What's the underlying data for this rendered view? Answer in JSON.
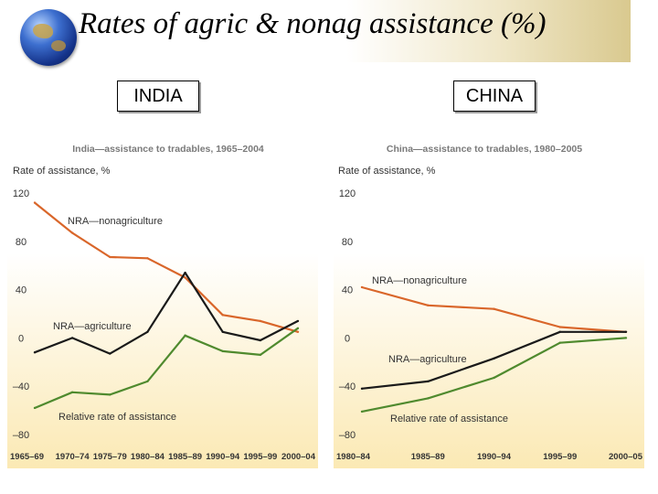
{
  "header": {
    "title": "Rates of agric & nonag assistance (%)",
    "india_label": "INDIA",
    "china_label": "CHINA"
  },
  "colors": {
    "nonag": "#d9662a",
    "agric": "#1a1a1a",
    "relative": "#4f8a2e",
    "panel_bg_top": "#ffffff",
    "panel_bg_bottom": "#fbe9b4",
    "title_text": "#7a7a7a"
  },
  "chart_data": [
    {
      "type": "line",
      "title": "India—assistance to tradables, 1965–2004",
      "ylabel": "Rate of assistance, %",
      "xlabel": "",
      "categories": [
        "1965–69",
        "1970–74",
        "1975–79",
        "1980–84",
        "1985–89",
        "1990–94",
        "1995–99",
        "2000–04"
      ],
      "ylim": [
        -80,
        120
      ],
      "yticks": [
        120,
        80,
        40,
        0,
        -40,
        -80
      ],
      "ytick_labels": [
        "120",
        "80",
        "40",
        "0",
        "–40",
        "–80"
      ],
      "grid": false,
      "series": [
        {
          "name": "NRA—nonagriculture",
          "key": "nonag",
          "values": [
            112,
            87,
            67,
            66,
            50,
            19,
            14,
            5
          ]
        },
        {
          "name": "NRA—agriculture",
          "key": "agric",
          "values": [
            -12,
            0,
            -13,
            5,
            54,
            5,
            -2,
            14
          ]
        },
        {
          "name": "Relative rate of assistance",
          "key": "relative",
          "values": [
            -58,
            -45,
            -47,
            -36,
            2,
            -11,
            -14,
            8
          ]
        }
      ]
    },
    {
      "type": "line",
      "title": "China—assistance to tradables, 1980–2005",
      "ylabel": "Rate of assistance, %",
      "xlabel": "",
      "categories": [
        "1980–84",
        "1985–89",
        "1990–94",
        "1995–99",
        "2000–05"
      ],
      "ylim": [
        -80,
        120
      ],
      "yticks": [
        120,
        80,
        40,
        0,
        -40,
        -80
      ],
      "ytick_labels": [
        "120",
        "80",
        "40",
        "0",
        "–40",
        "–80"
      ],
      "grid": false,
      "series": [
        {
          "name": "NRA—nonagriculture",
          "key": "nonag",
          "values": [
            42,
            27,
            24,
            9,
            5
          ]
        },
        {
          "name": "NRA—agriculture",
          "key": "agric",
          "values": [
            -42,
            -36,
            -17,
            5,
            5
          ]
        },
        {
          "name": "Relative rate of assistance",
          "key": "relative",
          "values": [
            -61,
            -50,
            -33,
            -4,
            0
          ]
        }
      ]
    }
  ]
}
